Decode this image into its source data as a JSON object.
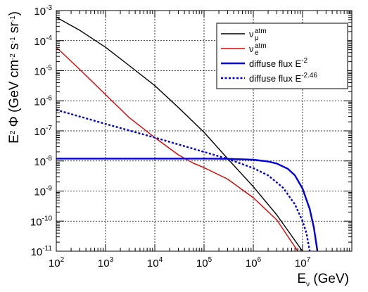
{
  "chart_data": {
    "type": "line",
    "xscale": "log",
    "yscale": "log",
    "xlim": [
      100,
      100000000
    ],
    "ylim": [
      1e-11,
      0.001
    ],
    "grid": true,
    "legend_position": "top-right",
    "xlabel": {
      "main": "E",
      "sub": "ν",
      "unit": " (GeV)"
    },
    "ylabel": {
      "parts": [
        {
          "t": "E"
        },
        {
          "t": "2",
          "sup": true
        },
        {
          "t": " Φ (GeV cm"
        },
        {
          "t": "-2",
          "sup": true
        },
        {
          "t": " s"
        },
        {
          "t": "-1",
          "sup": true
        },
        {
          "t": " sr"
        },
        {
          "t": "-1",
          "sup": true
        },
        {
          "t": ")"
        }
      ]
    },
    "x_ticks": [
      {
        "value": 100,
        "base": "10",
        "exp": "2"
      },
      {
        "value": 1000,
        "base": "10",
        "exp": "3"
      },
      {
        "value": 10000,
        "base": "10",
        "exp": "4"
      },
      {
        "value": 100000,
        "base": "10",
        "exp": "5"
      },
      {
        "value": 1000000,
        "base": "10",
        "exp": "6"
      },
      {
        "value": 10000000,
        "base": "10",
        "exp": "7"
      }
    ],
    "y_ticks": [
      {
        "value": 1e-11,
        "base": "10",
        "exp": "-11"
      },
      {
        "value": 1e-10,
        "base": "10",
        "exp": "-10"
      },
      {
        "value": 1e-09,
        "base": "10",
        "exp": "-9"
      },
      {
        "value": 1e-08,
        "base": "10",
        "exp": "-8"
      },
      {
        "value": 1e-07,
        "base": "10",
        "exp": "-7"
      },
      {
        "value": 1e-06,
        "base": "10",
        "exp": "-6"
      },
      {
        "value": 1e-05,
        "base": "10",
        "exp": "-5"
      },
      {
        "value": 0.0001,
        "base": "10",
        "exp": "-4"
      },
      {
        "value": 0.001,
        "base": "10",
        "exp": "-3"
      }
    ],
    "series": [
      {
        "name": "ν_μ^atm",
        "legend": {
          "main": "ν",
          "sub": "μ",
          "sup": "atm"
        },
        "color": "#000000",
        "style": "solid",
        "x": [
          100,
          300,
          1000,
          3000,
          10000,
          30000,
          100000,
          300000,
          1000000,
          3000000,
          10000000
        ],
        "y": [
          0.0006,
          0.00022,
          6e-05,
          1.5e-05,
          3.2e-06,
          6e-07,
          9e-08,
          1.2e-08,
          1.4e-09,
          1.6e-10,
          1e-11
        ]
      },
      {
        "name": "ν_e^atm",
        "legend": {
          "main": "ν",
          "sub": "e",
          "sup": "atm"
        },
        "color": "#e00000",
        "style": "solid",
        "x": [
          100,
          300,
          1000,
          3000,
          10000,
          30000,
          60000,
          100000,
          300000,
          1000000,
          3000000,
          8000000
        ],
        "y": [
          6e-05,
          1.1e-05,
          1.6e-06,
          2.8e-07,
          6e-08,
          1.6e-08,
          8.5e-09,
          6e-09,
          2.5e-09,
          6e-10,
          1.1e-10,
          1e-11
        ]
      },
      {
        "name": "diffuse flux E^-2",
        "legend": {
          "main": "diffuse flux E",
          "sup": "-2"
        },
        "color": "#0000e0",
        "style": "solid",
        "x": [
          100,
          10000,
          100000,
          300000,
          1000000,
          2000000,
          3000000,
          5000000,
          7000000,
          10000000,
          14000000,
          17000000,
          20000000
        ],
        "y": [
          1.2e-08,
          1.2e-08,
          1.2e-08,
          1.18e-08,
          1.1e-08,
          9.6e-09,
          8.2e-09,
          5.5e-09,
          3.3e-09,
          1.2e-09,
          2.5e-10,
          6e-11,
          1e-11
        ]
      },
      {
        "name": "diffuse flux E^-2.46",
        "legend": {
          "main": "diffuse flux E",
          "sup": "-2.46"
        },
        "color": "#0000e0",
        "style": "dotted",
        "x": [
          100,
          1000,
          10000,
          100000,
          300000,
          1000000,
          2000000,
          4000000,
          7000000,
          10000000,
          12000000,
          14000000
        ],
        "y": [
          5e-07,
          1.7e-07,
          6e-08,
          2e-08,
          1.18e-08,
          5.8e-09,
          3.3e-09,
          1.3e-09,
          3.6e-10,
          1e-10,
          4e-11,
          1e-11
        ]
      }
    ]
  }
}
